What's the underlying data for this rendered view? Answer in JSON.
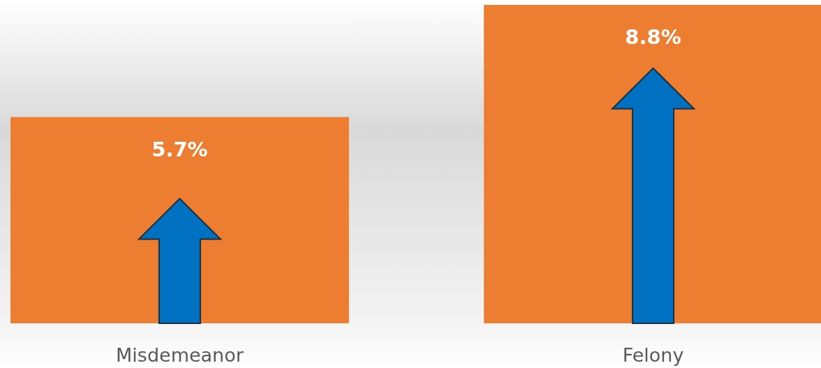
{
  "chart_data": {
    "type": "bar",
    "categories": [
      "Misdemeanor",
      "Felony"
    ],
    "values": [
      5.7,
      8.8
    ],
    "value_labels": [
      "5.7%",
      "8.8%"
    ],
    "color": "#ed7d31"
  }
}
